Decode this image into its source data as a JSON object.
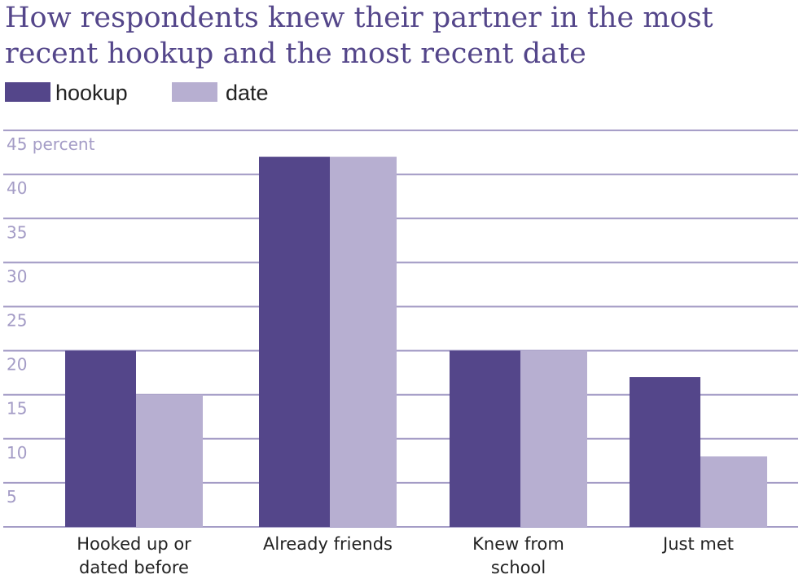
{
  "chart_data": {
    "type": "bar",
    "title": "How respondents knew their partner in the most recent hookup and the most recent date",
    "categories": [
      [
        "Hooked up or",
        "dated before"
      ],
      [
        "Already friends"
      ],
      [
        "Knew from",
        "school"
      ],
      [
        "Just met"
      ]
    ],
    "series": [
      {
        "name": "hookup",
        "color": "#54468a",
        "values": [
          20,
          42,
          20,
          17
        ]
      },
      {
        "name": "date",
        "color": "#b7afd1",
        "values": [
          15,
          42,
          20,
          8
        ]
      }
    ],
    "y_ticks": [
      5,
      10,
      15,
      20,
      25,
      30,
      35,
      40,
      45
    ],
    "y_tick_labels": [
      "5",
      "10",
      "15",
      "20",
      "25",
      "30",
      "35",
      "40",
      "45 percent"
    ],
    "ylim": [
      0,
      45
    ],
    "grid": true,
    "gridline_color": "#a49cc6",
    "legend_position": "top-left"
  }
}
